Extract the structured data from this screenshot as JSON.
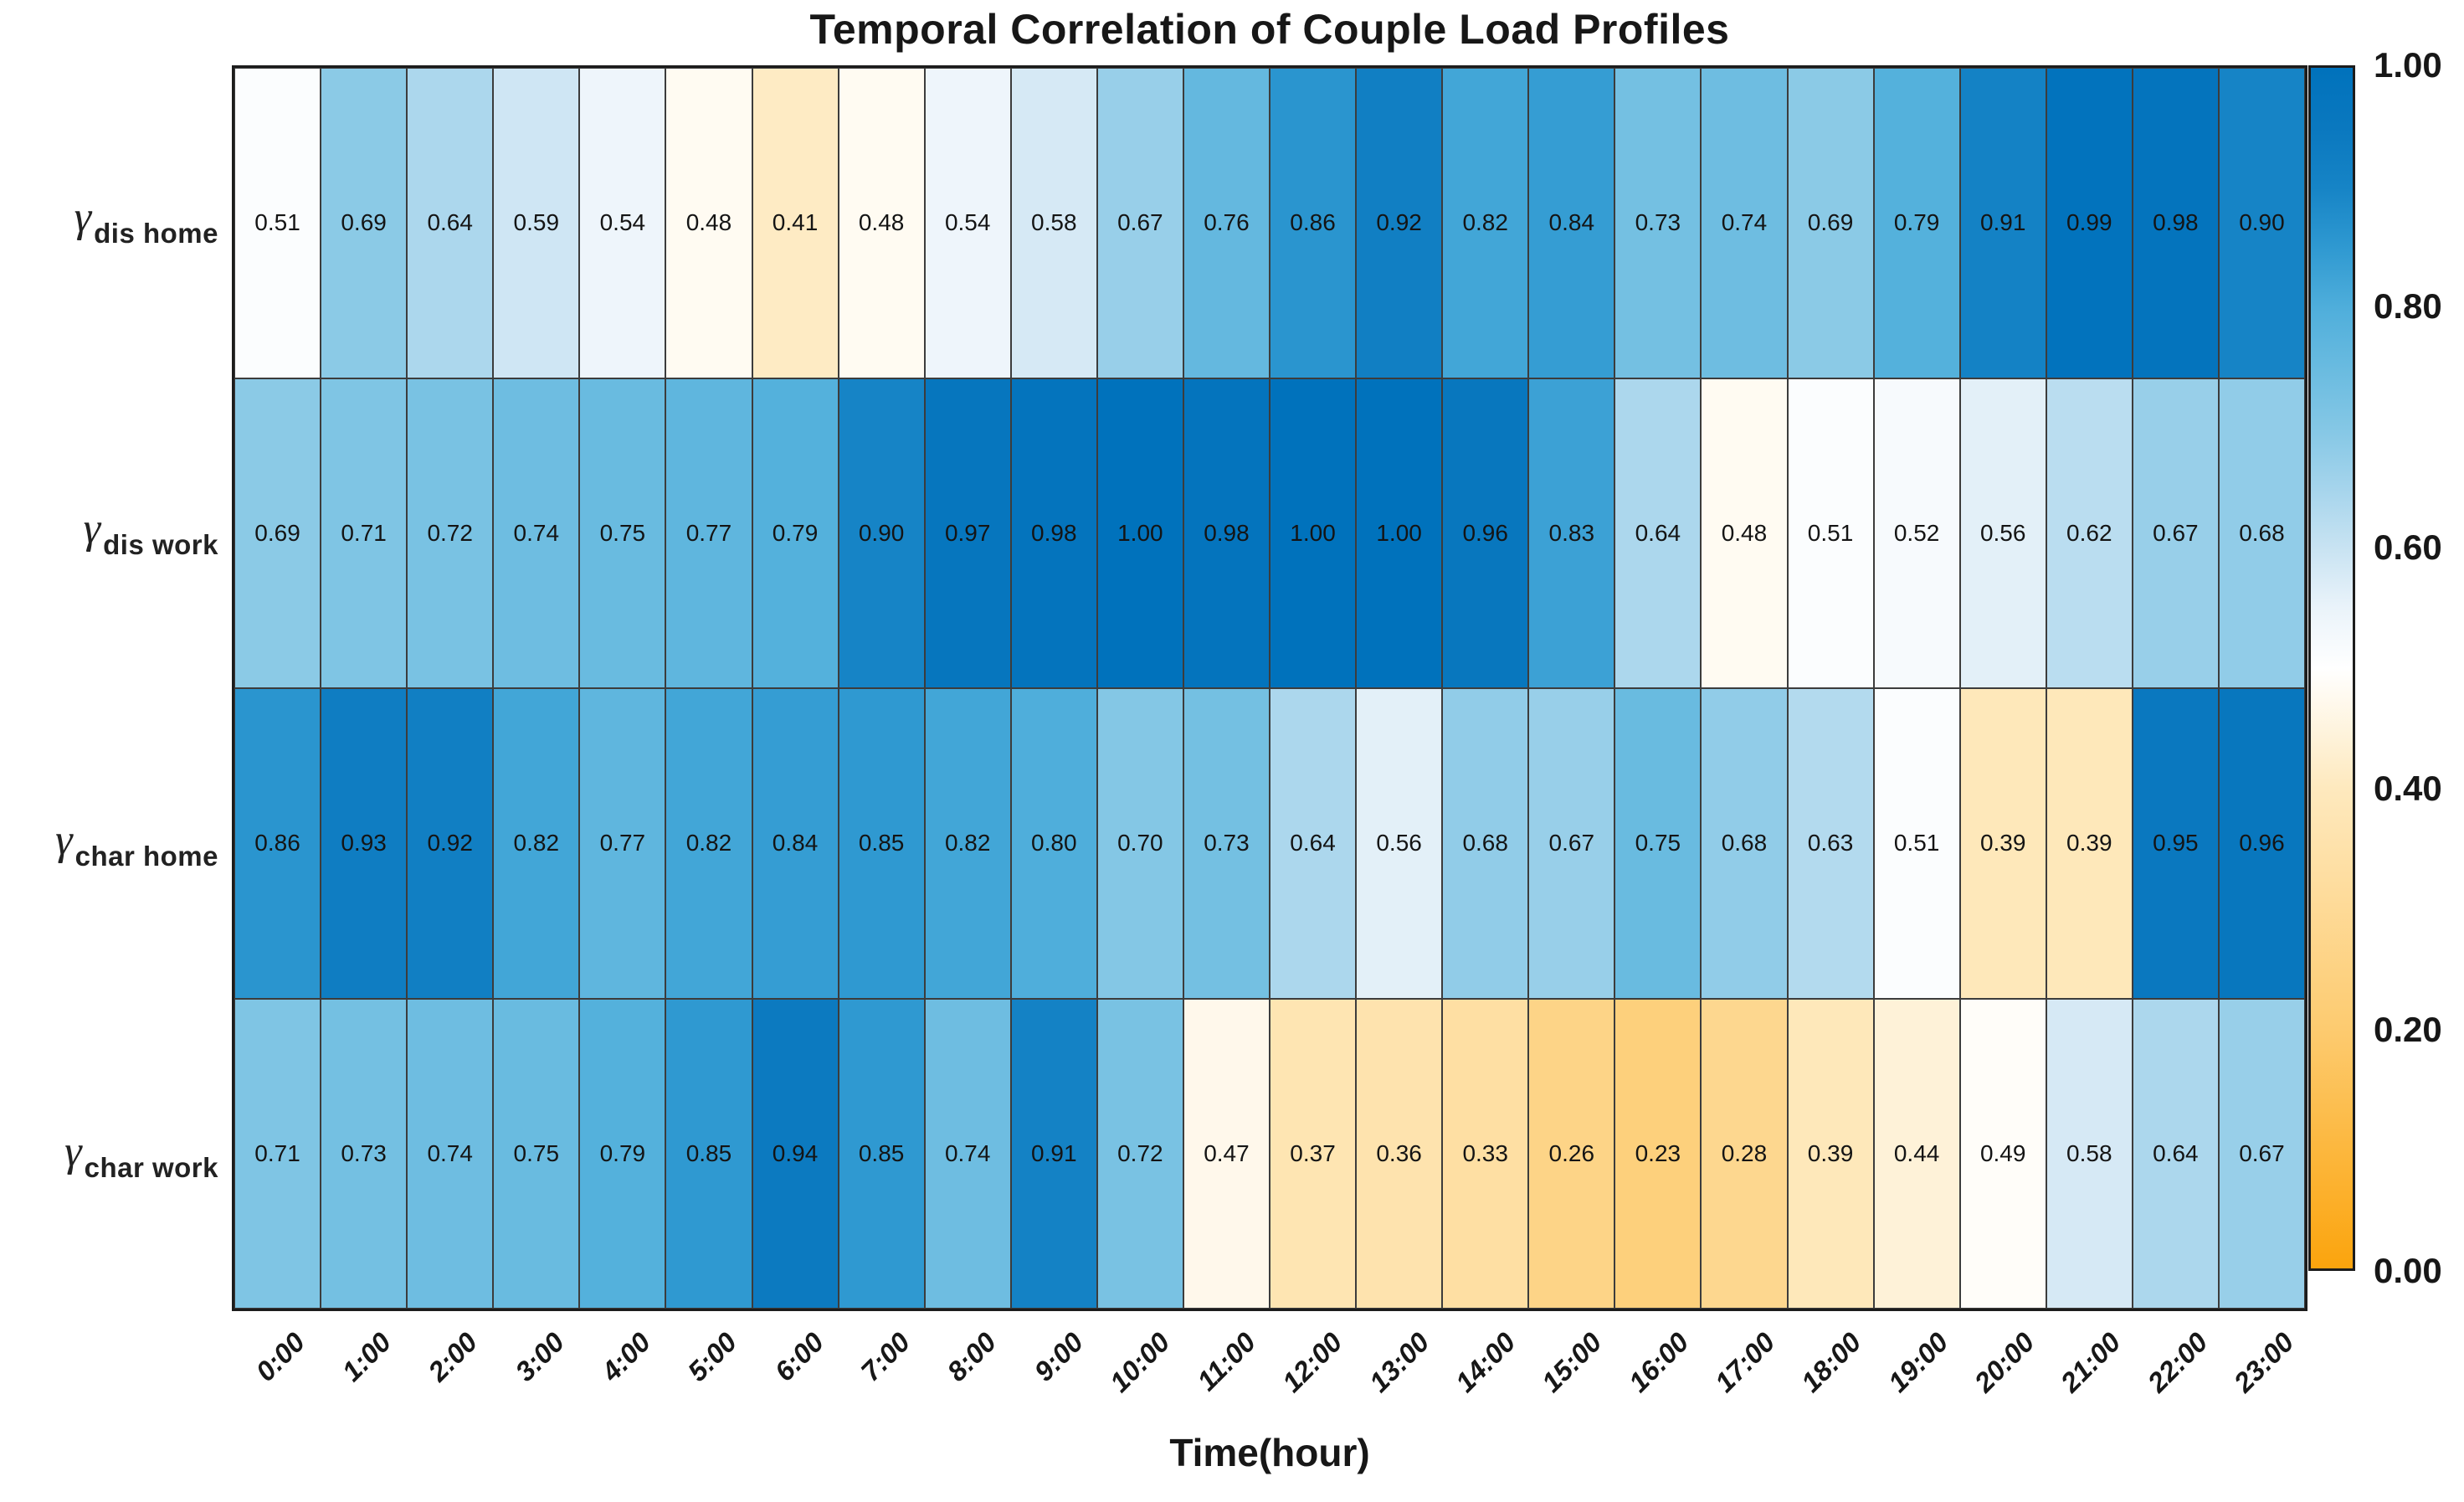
{
  "title": "Temporal Correlation of Couple Load Profiles",
  "chart_data": {
    "type": "heatmap",
    "title": "Temporal Correlation of Couple Load Profiles",
    "xlabel": "Time(hour)",
    "x_categories": [
      "0:00",
      "1:00",
      "2:00",
      "3:00",
      "4:00",
      "5:00",
      "6:00",
      "7:00",
      "8:00",
      "9:00",
      "10:00",
      "11:00",
      "12:00",
      "13:00",
      "14:00",
      "15:00",
      "16:00",
      "17:00",
      "18:00",
      "19:00",
      "20:00",
      "21:00",
      "22:00",
      "23:00"
    ],
    "rows": [
      {
        "gamma": "γ",
        "subscript": "dis home",
        "values": [
          0.51,
          0.69,
          0.64,
          0.59,
          0.54,
          0.48,
          0.41,
          0.48,
          0.54,
          0.58,
          0.67,
          0.76,
          0.86,
          0.92,
          0.82,
          0.84,
          0.73,
          0.74,
          0.69,
          0.79,
          0.91,
          0.99,
          0.98,
          0.9
        ]
      },
      {
        "gamma": "γ",
        "subscript": "dis work",
        "values": [
          0.69,
          0.71,
          0.72,
          0.74,
          0.75,
          0.77,
          0.79,
          0.9,
          0.97,
          0.98,
          1.0,
          0.98,
          1.0,
          1.0,
          0.96,
          0.83,
          0.64,
          0.48,
          0.51,
          0.52,
          0.56,
          0.62,
          0.67,
          0.68
        ]
      },
      {
        "gamma": "γ",
        "subscript": "char home",
        "values": [
          0.86,
          0.93,
          0.92,
          0.82,
          0.77,
          0.82,
          0.84,
          0.85,
          0.82,
          0.8,
          0.7,
          0.73,
          0.64,
          0.56,
          0.68,
          0.67,
          0.75,
          0.68,
          0.63,
          0.51,
          0.39,
          0.39,
          0.95,
          0.96
        ]
      },
      {
        "gamma": "γ",
        "subscript": "char work",
        "values": [
          0.71,
          0.73,
          0.74,
          0.75,
          0.79,
          0.85,
          0.94,
          0.85,
          0.74,
          0.91,
          0.72,
          0.47,
          0.37,
          0.36,
          0.33,
          0.26,
          0.23,
          0.28,
          0.39,
          0.44,
          0.49,
          0.58,
          0.64,
          0.67
        ]
      }
    ],
    "value_decimals": 2,
    "colorbar": {
      "min": 0.0,
      "max": 1.0,
      "tick_labels_top_to_bottom": [
        "1.00",
        "0.80",
        "0.60",
        "0.40",
        "0.20",
        "0.00"
      ]
    },
    "colormap_stops": [
      {
        "t": 0.0,
        "c": "#FBA40D"
      },
      {
        "t": 0.2,
        "c": "#FDCB70"
      },
      {
        "t": 0.4,
        "c": "#FEE9BE"
      },
      {
        "t": 0.5,
        "c": "#FFFFFF"
      },
      {
        "t": 0.55,
        "c": "#EAF3FA"
      },
      {
        "t": 0.6,
        "c": "#C8E3F2"
      },
      {
        "t": 0.65,
        "c": "#A5D4EC"
      },
      {
        "t": 0.7,
        "c": "#84C7E5"
      },
      {
        "t": 0.75,
        "c": "#69BBE0"
      },
      {
        "t": 0.8,
        "c": "#4FAEDB"
      },
      {
        "t": 0.85,
        "c": "#2F99D1"
      },
      {
        "t": 0.9,
        "c": "#1684C6"
      },
      {
        "t": 0.95,
        "c": "#0A78BF"
      },
      {
        "t": 1.0,
        "c": "#0072BC"
      }
    ],
    "layout": {
      "grid_on": true,
      "cell_border_color": "#3C3C3C",
      "frame_color": "#1C1C1C",
      "x_tick_rotation_deg": 45
    }
  }
}
